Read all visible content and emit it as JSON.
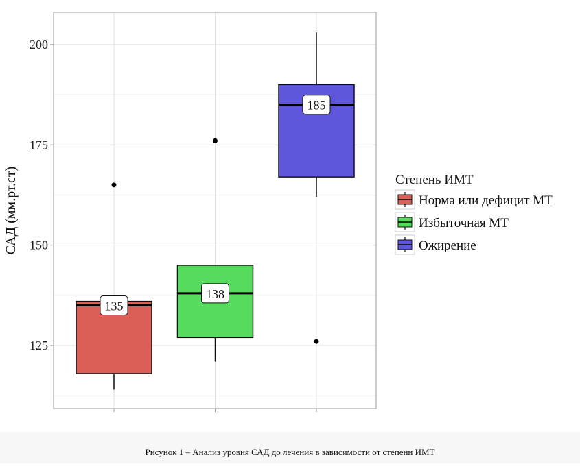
{
  "chart_data": {
    "type": "boxplot",
    "title": "",
    "xlabel": "",
    "ylabel": "САД (мм.рт.ст)",
    "ylim": [
      109.3,
      208
    ],
    "yticks": [
      125,
      150,
      175,
      200
    ],
    "ytick_labels": [
      "125",
      "150",
      "175",
      "200"
    ],
    "minor_gridlines": [
      112.5,
      137.5,
      162.5,
      187.5
    ],
    "grid": true,
    "legend": {
      "title": "Степень ИМТ",
      "placement": "right",
      "entries": [
        "Норма или дефицит МТ",
        "Избыточная МТ",
        "Ожирение"
      ]
    },
    "series": [
      {
        "name": "Норма или дефицит МТ",
        "color": "#db5f57",
        "whisker_low": 114,
        "q1": 118,
        "median": 135,
        "q3": 136,
        "whisker_high": 136,
        "outliers": [
          165
        ],
        "median_label": "135"
      },
      {
        "name": "Избыточная МТ",
        "color": "#57db5f",
        "whisker_low": 121,
        "q1": 127,
        "median": 138,
        "q3": 145,
        "whisker_high": 145,
        "outliers": [
          176
        ],
        "median_label": "138"
      },
      {
        "name": "Ожирение",
        "color": "#5f57db",
        "whisker_low": 162,
        "q1": 167,
        "median": 185,
        "q3": 190,
        "whisker_high": 203,
        "outliers": [
          126
        ],
        "median_label": "185"
      }
    ]
  },
  "caption": "Рисунок 1 – Анализ уровня САД до лечения в зависимости от степени ИМТ"
}
